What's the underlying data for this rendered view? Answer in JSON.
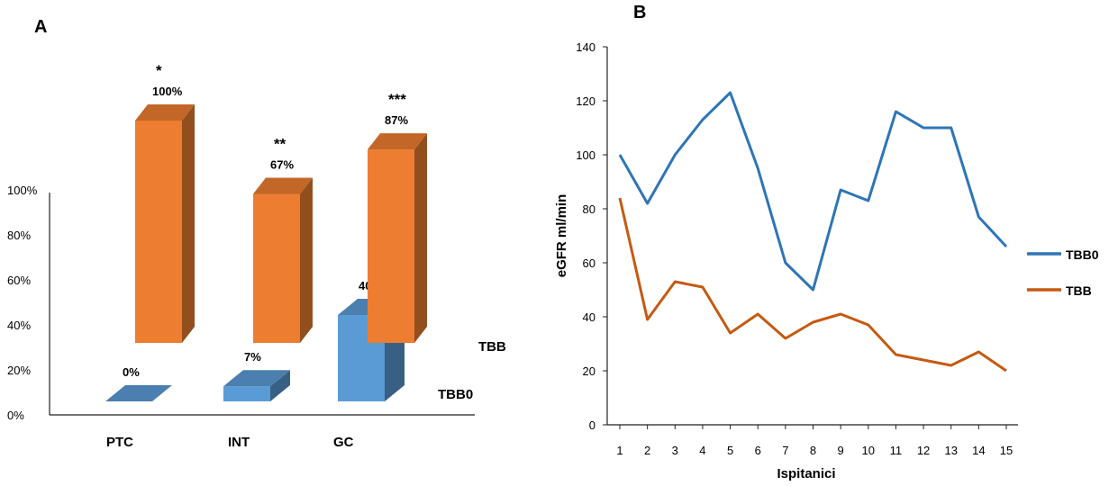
{
  "panels": {
    "a_label": "A",
    "b_label": "B"
  },
  "chart_data": [
    {
      "type": "bar",
      "categories": [
        "PTC",
        "INT",
        "GC"
      ],
      "y_ticks": [
        "0%",
        "20%",
        "40%",
        "60%",
        "80%",
        "100%"
      ],
      "ylim": [
        0,
        100
      ],
      "series": [
        {
          "name": "TBB0",
          "values": [
            0,
            7,
            40
          ],
          "labels": [
            "0%",
            "7%",
            "40%"
          ],
          "color": "#5B9BD5"
        },
        {
          "name": "TBB",
          "values": [
            100,
            67,
            87
          ],
          "labels": [
            "100%",
            "67%",
            "87%"
          ],
          "significance": [
            "*",
            "**",
            "***"
          ],
          "color": "#ED7D31"
        }
      ]
    },
    {
      "type": "line",
      "xlabel": "Ispitanici",
      "ylabel": "eGFR ml/min",
      "x": [
        1,
        2,
        3,
        4,
        5,
        6,
        7,
        8,
        9,
        10,
        11,
        12,
        13,
        14,
        15
      ],
      "ylim": [
        0,
        140
      ],
      "y_ticks": [
        0,
        20,
        40,
        60,
        80,
        100,
        120,
        140
      ],
      "legend_position": "right",
      "series": [
        {
          "name": "TBB0",
          "color": "#2E75B6",
          "values": [
            100,
            82,
            100,
            113,
            123,
            95,
            60,
            50,
            87,
            83,
            116,
            110,
            110,
            77,
            66
          ]
        },
        {
          "name": "TBB",
          "color": "#C55A11",
          "values": [
            84,
            39,
            53,
            51,
            34,
            41,
            32,
            38,
            41,
            37,
            26,
            24,
            22,
            27,
            20
          ]
        }
      ]
    }
  ]
}
